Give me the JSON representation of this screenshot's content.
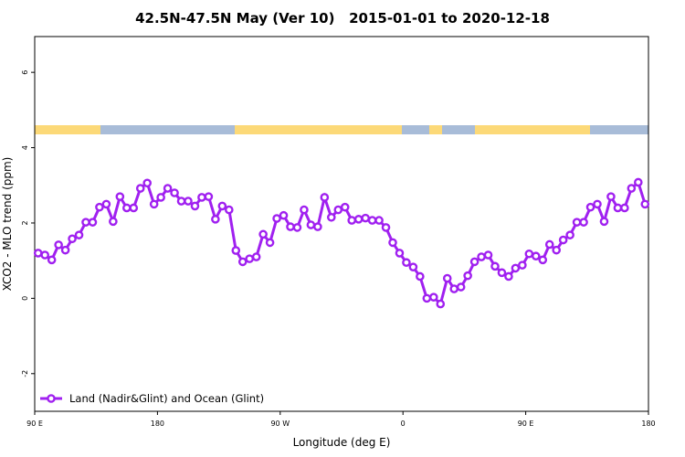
{
  "chart_data": {
    "type": "line",
    "title": "42.5N-47.5N May (Ver 10)   2015-01-01 to 2020-12-18",
    "x_label": "Longitude (deg E)",
    "y_label": "XCO2 - MLO trend (ppm)",
    "x": [
      92.5,
      97.5,
      102.5,
      107.5,
      112.5,
      117.5,
      122.5,
      127.5,
      132.5,
      137.5,
      142.5,
      147.5,
      152.5,
      157.5,
      162.5,
      167.5,
      172.5,
      177.5,
      182.5,
      187.5,
      192.5,
      197.5,
      202.5,
      207.5,
      212.5,
      217.5,
      222.5,
      227.5,
      232.5,
      237.5,
      242.5,
      247.5,
      252.5,
      257.5,
      262.5,
      267.5,
      272.5,
      277.5,
      282.5,
      287.5,
      292.5,
      297.5,
      302.5,
      307.5,
      312.5,
      317.5,
      322.5,
      327.5,
      332.5,
      337.5,
      342.5,
      347.5,
      352.5,
      357.5,
      362.5,
      367.5,
      372.5,
      377.5,
      382.5,
      387.5,
      392.5,
      397.5,
      402.5,
      407.5,
      412.5,
      417.5,
      422.5,
      427.5,
      432.5,
      437.5,
      442.5,
      447.5,
      452.5,
      457.5,
      462.5,
      467.5,
      472.5,
      477.5,
      482.5,
      487.5,
      492.5,
      497.5,
      502.5,
      507.5,
      512.5,
      517.5,
      522.5,
      527.5,
      532.5,
      537.5
    ],
    "series": [
      {
        "name": "Land (Nadir&Glint) and Ocean (Glint)",
        "color": "#a020f0",
        "values": [
          1.2,
          1.15,
          1.02,
          1.42,
          1.28,
          1.58,
          1.68,
          2.02,
          2.02,
          2.42,
          2.5,
          2.04,
          2.7,
          2.4,
          2.4,
          2.92,
          3.06,
          2.5,
          2.68,
          2.92,
          2.8,
          2.58,
          2.58,
          2.45,
          2.68,
          2.7,
          2.1,
          2.45,
          2.35,
          1.27,
          0.97,
          1.05,
          1.1,
          1.7,
          1.48,
          2.12,
          2.2,
          1.9,
          1.88,
          2.35,
          1.95,
          1.9,
          2.68,
          2.15,
          2.35,
          2.42,
          2.07,
          2.1,
          2.13,
          2.07,
          2.07,
          1.88,
          1.48,
          1.2,
          0.95,
          0.83,
          0.58,
          0.0,
          0.03,
          -0.15,
          0.53,
          0.25,
          0.3,
          0.6,
          0.97,
          1.1,
          1.15,
          0.85,
          0.68,
          0.58,
          0.8,
          0.88,
          1.18,
          1.12,
          1.02,
          1.43,
          1.28,
          1.55,
          1.68,
          2.02,
          2.02,
          2.42,
          2.5,
          2.04,
          2.7,
          2.4,
          2.4,
          2.92,
          3.08,
          2.5
        ]
      }
    ],
    "xlim": [
      90,
      540
    ],
    "xticks": [
      {
        "value": 90,
        "label": "90 E"
      },
      180,
      {
        "value": 270,
        "label": "90 W"
      },
      {
        "value": 360,
        "label": "0"
      },
      {
        "value": 450,
        "label": "90 E"
      },
      {
        "value": 540,
        "label": "180"
      }
    ],
    "ylim": [
      -3,
      6.95
    ],
    "yticks": [
      -2,
      0,
      2,
      4,
      6
    ],
    "legend": "bottom-left"
  }
}
